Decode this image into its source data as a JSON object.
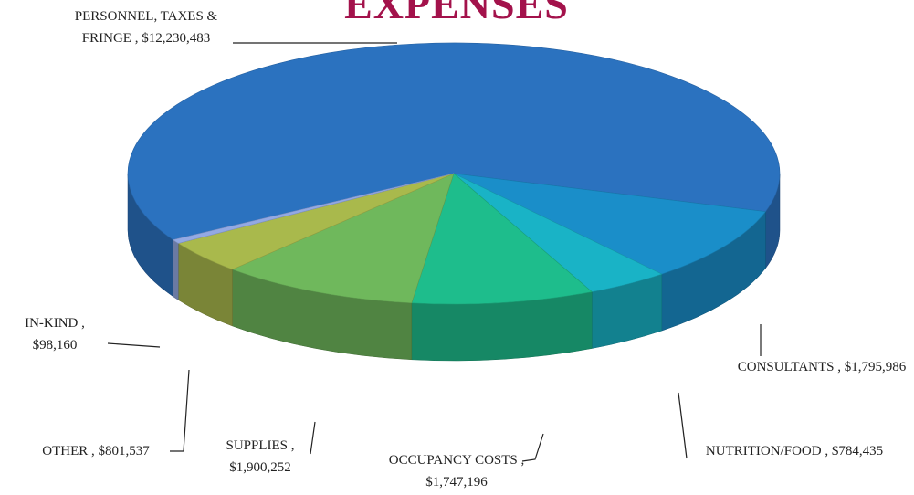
{
  "chart_data": {
    "type": "pie3d",
    "title": "EXPENSES",
    "categories": [
      "PERSONNEL, TAXES & FRINGE ,",
      "CONSULTANTS ,",
      "NUTRITION/FOOD ,",
      "OCCUPANCY COSTS ,",
      "SUPPLIES ,",
      "OTHER ,",
      "IN-KIND ,"
    ],
    "values": [
      12230483,
      1795986,
      784435,
      1747196,
      1900252,
      801537,
      98160
    ],
    "value_labels": [
      "$12,230,483",
      "$1,795,986",
      "$784,435",
      "$1,747,196",
      "$1,900,252",
      "$801,537",
      "$98,160"
    ],
    "colors": [
      "#2b72bf",
      "#1a8ec9",
      "#19b3c6",
      "#1ebd8c",
      "#6fb85c",
      "#a9b94c",
      "#93a9e3"
    ]
  }
}
